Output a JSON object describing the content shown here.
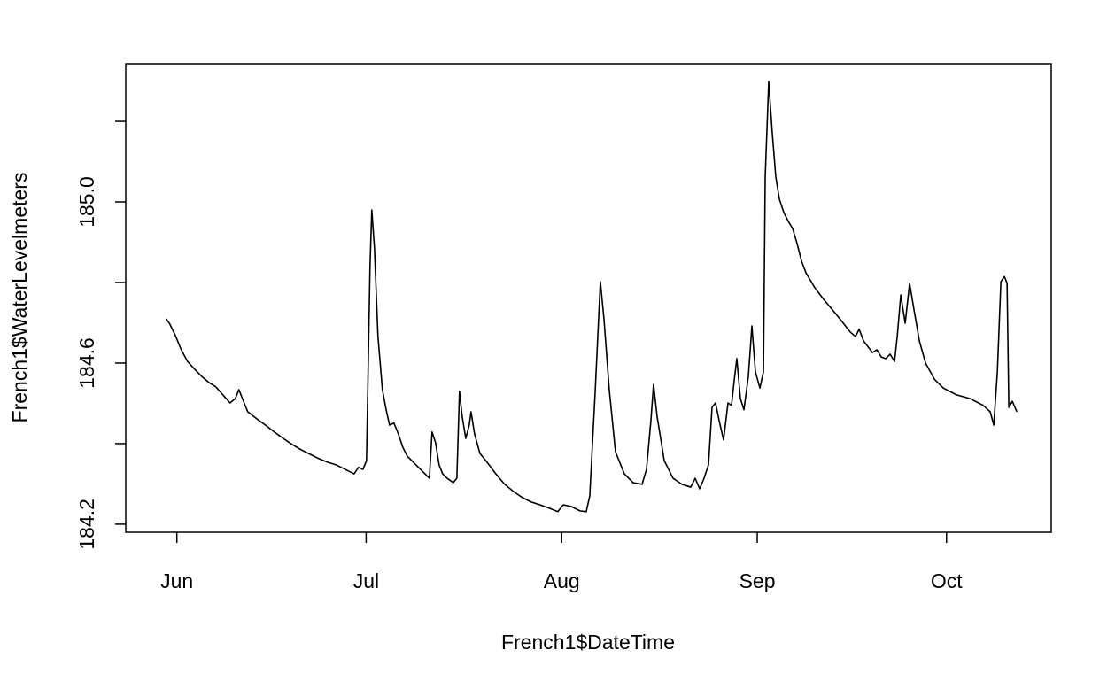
{
  "chart_data": {
    "type": "line",
    "xlabel": "French1$DateTime",
    "ylabel": "French1$WaterLevelmeters",
    "color": "#000000",
    "xlim": [
      -8.1,
      138.6
    ],
    "xticks": [
      {
        "value": 0,
        "label": "Jun"
      },
      {
        "value": 30,
        "label": "Jul"
      },
      {
        "value": 61,
        "label": "Aug"
      },
      {
        "value": 92,
        "label": "Sep"
      },
      {
        "value": 122,
        "label": "Oct"
      }
    ],
    "ylim": [
      184.18,
      185.343
    ],
    "yticks": [
      184.2,
      {
        "value": 184.4,
        "label": null
      },
      184.6,
      {
        "value": 184.8,
        "label": null
      },
      {
        "value": 185.0,
        "label": "185.0"
      },
      {
        "value": 185.2,
        "label": null
      }
    ],
    "x": [
      -1.69,
      -1.12,
      -0.28,
      0.7,
      1.69,
      2.81,
      3.93,
      5.06,
      6.18,
      7.3,
      8.43,
      9.27,
      9.83,
      10.39,
      11.24,
      12.64,
      14.04,
      15.45,
      16.85,
      18.26,
      19.66,
      21.07,
      22.47,
      23.88,
      25.28,
      26.69,
      28.09,
      28.79,
      29.49,
      30.06,
      30.62,
      30.9,
      31.32,
      31.88,
      32.58,
      33.15,
      33.71,
      34.41,
      35.11,
      35.81,
      36.52,
      37.92,
      39.33,
      40.03,
      40.45,
      41.01,
      41.57,
      42.13,
      42.84,
      43.82,
      44.38,
      44.8,
      45.22,
      45.79,
      46.35,
      46.63,
      47.19,
      48.03,
      49.16,
      50.56,
      51.97,
      53.37,
      54.78,
      56.18,
      57.58,
      58.99,
      60.39,
      61.24,
      62.5,
      63.9,
      64.89,
      65.45,
      66.29,
      67.13,
      67.7,
      68.54,
      69.52,
      70.93,
      72.33,
      73.74,
      74.44,
      75.14,
      75.56,
      76.12,
      77.25,
      78.65,
      80.06,
      81.46,
      82.16,
      82.87,
      83.57,
      84.27,
      84.83,
      85.39,
      85.96,
      86.66,
      87.36,
      87.92,
      88.34,
      88.76,
      89.33,
      89.89,
      90.59,
      91.15,
      91.71,
      92.42,
      92.98,
      93.26,
      93.82,
      94.38,
      94.94,
      95.51,
      96.21,
      96.91,
      97.61,
      98.31,
      99.02,
      99.72,
      101.12,
      102.53,
      103.93,
      105.34,
      106.74,
      107.58,
      108.15,
      108.85,
      110.25,
      110.96,
      111.66,
      112.36,
      113.06,
      113.76,
      114.19,
      114.75,
      115.45,
      116.15,
      116.85,
      117.7,
      118.68,
      120.08,
      121.49,
      123.6,
      125.7,
      127.81,
      128.93,
      129.49,
      130.06,
      130.62,
      131.18,
      131.6,
      131.88,
      132.44,
      133.15
    ],
    "values": [
      184.71,
      184.697,
      184.67,
      184.633,
      184.604,
      184.585,
      184.567,
      184.552,
      184.541,
      184.521,
      184.501,
      184.512,
      184.534,
      184.512,
      184.479,
      184.462,
      184.446,
      184.429,
      184.413,
      184.398,
      184.385,
      184.374,
      184.363,
      184.354,
      184.347,
      184.336,
      184.325,
      184.341,
      184.336,
      184.358,
      184.842,
      184.98,
      184.886,
      184.666,
      184.534,
      184.486,
      184.446,
      184.451,
      184.424,
      184.391,
      184.369,
      184.347,
      184.325,
      184.314,
      184.429,
      184.402,
      184.347,
      184.325,
      184.314,
      184.303,
      184.314,
      184.53,
      184.468,
      184.413,
      184.446,
      184.479,
      184.424,
      184.376,
      184.354,
      184.325,
      184.299,
      184.281,
      184.266,
      184.255,
      184.248,
      184.24,
      184.231,
      184.248,
      184.244,
      184.233,
      184.231,
      184.27,
      184.523,
      184.802,
      184.71,
      184.534,
      184.38,
      184.325,
      184.303,
      184.299,
      184.336,
      184.457,
      184.547,
      184.468,
      184.358,
      184.314,
      184.299,
      184.292,
      184.314,
      184.288,
      184.314,
      184.347,
      184.49,
      184.501,
      184.457,
      184.409,
      184.501,
      184.495,
      184.556,
      184.611,
      184.512,
      184.484,
      184.567,
      184.692,
      184.578,
      184.538,
      184.578,
      185.062,
      185.299,
      185.171,
      185.062,
      185.007,
      184.974,
      184.952,
      184.934,
      184.897,
      184.853,
      184.824,
      184.787,
      184.758,
      184.732,
      184.705,
      184.677,
      184.666,
      184.684,
      184.655,
      184.626,
      184.633,
      184.615,
      184.611,
      184.622,
      184.604,
      184.666,
      184.769,
      184.699,
      184.798,
      184.732,
      184.655,
      184.6,
      184.56,
      184.538,
      184.521,
      184.512,
      184.495,
      184.479,
      184.446,
      184.578,
      184.802,
      184.815,
      184.798,
      184.49,
      184.505,
      184.479
    ]
  }
}
